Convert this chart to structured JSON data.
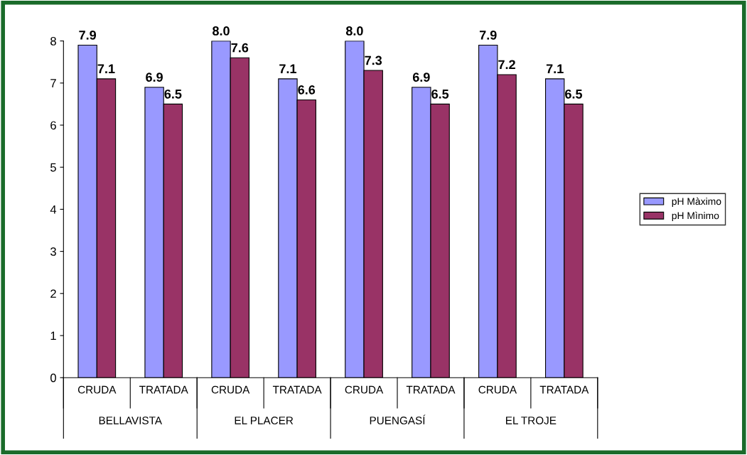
{
  "chart_data": {
    "type": "bar",
    "categories": [
      "CRUDA",
      "TRATADA",
      "CRUDA",
      "TRATADA",
      "CRUDA",
      "TRATADA",
      "CRUDA",
      "TRATADA"
    ],
    "series": [
      {
        "name": "pH Màximo",
        "color": "#9999ff",
        "values": [
          7.9,
          6.9,
          8.0,
          7.1,
          8.0,
          6.9,
          7.9,
          7.1
        ],
        "value_labels": [
          "7.9",
          "6.9",
          "8.0",
          "7.1",
          "8.0",
          "6.9",
          "7.9",
          "7.1"
        ]
      },
      {
        "name": "pH Mìnimo",
        "color": "#993366",
        "values": [
          7.1,
          6.5,
          7.6,
          6.6,
          7.3,
          6.5,
          7.2,
          6.5
        ],
        "value_labels": [
          "7.1",
          "6.5",
          "7.6",
          "6.6",
          "7.3",
          "6.5",
          "7.2",
          "6.5"
        ]
      }
    ],
    "annotations": [
      "BELLAVISTA",
      "EL PLACER",
      "PUENGASÍ",
      "EL TROJE"
    ],
    "ylim": [
      0,
      8
    ],
    "yticks": [
      0,
      1,
      2,
      3,
      4,
      5,
      6,
      7,
      8
    ],
    "grid": false,
    "legend": "right"
  }
}
